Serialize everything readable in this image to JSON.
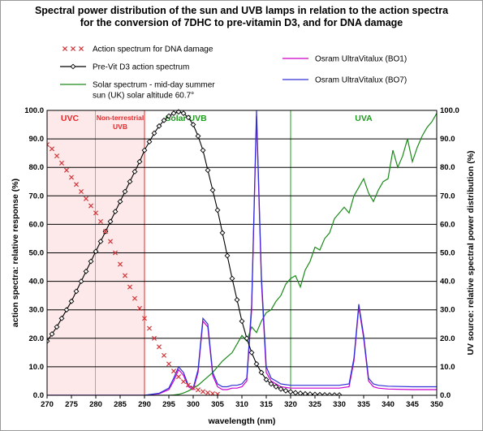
{
  "chart_data": {
    "type": "line",
    "title_lines": [
      "Spectral power distribution of the sun and UVB lamps in relation to the action spectra",
      "for the conversion of 7DHC to pre-vitamin D3, and for DNA damage"
    ],
    "xlabel": "wavelength (nm)",
    "ylabel_left": "action spectra: relative response (%)",
    "ylabel_right": "UV source: relative spectral power distribution (%)",
    "xlim": [
      270,
      350
    ],
    "ylim": [
      0,
      100
    ],
    "x_ticks": [
      "270",
      "275",
      "280",
      "285",
      "290",
      "295",
      "300",
      "305",
      "310",
      "315",
      "320",
      "325",
      "330",
      "335",
      "340",
      "345",
      "350"
    ],
    "y_ticks": [
      "0.0",
      "10.0",
      "20.0",
      "30.0",
      "40.0",
      "50.0",
      "60.0",
      "70.0",
      "80.0",
      "90.0",
      "100.0"
    ],
    "grid": "horizontal",
    "regions": [
      {
        "label": "UVC",
        "x0": 270,
        "x1": 280,
        "color": "#e8272a",
        "shaded": true
      },
      {
        "label_lines": [
          "Non-terrestrial",
          "UVB"
        ],
        "x0": 280,
        "x1": 290,
        "color": "#e8272a",
        "shaded": true
      },
      {
        "label": "Solar UVB",
        "x0": 290,
        "x1": 320,
        "color": "#1d9b1d",
        "shaded": false
      },
      {
        "label": "UVA",
        "x0": 320,
        "x1": 350,
        "color": "#1d9b1d",
        "shaded": false
      }
    ],
    "legend": [
      {
        "label": "Action spectrum for DNA damage",
        "color": "#d6363a",
        "marker": "x"
      },
      {
        "label": "Pre-Vit D3 action spectrum",
        "color": "#000000",
        "marker": "diamond"
      },
      {
        "label_lines": [
          "Solar spectrum - mid-day summer",
          "sun (UK)  solar altitude 60.7°"
        ],
        "color": "#1a8a1a",
        "marker": "line"
      },
      {
        "label": "Osram UltraVitalux (BO1)",
        "color": "#cc00cc",
        "marker": "line"
      },
      {
        "label": "Osram UltraVitalux (BO7)",
        "color": "#3030d8",
        "marker": "line"
      }
    ],
    "series": [
      {
        "name": "Action spectrum for DNA damage",
        "color": "#d6363a",
        "marker": "x",
        "x": [
          270,
          271,
          272,
          273,
          274,
          275,
          276,
          277,
          278,
          279,
          280,
          281,
          282,
          283,
          284,
          285,
          286,
          287,
          288,
          289,
          290,
          291,
          292,
          293,
          294,
          295,
          296,
          297,
          298,
          299,
          300,
          301,
          302,
          303,
          304,
          305
        ],
        "y": [
          88,
          86.5,
          84,
          81.5,
          79,
          76.5,
          74,
          71.5,
          69,
          66.5,
          64,
          61,
          57.5,
          54,
          50,
          46,
          42,
          38,
          34,
          30.5,
          27,
          23.5,
          20,
          17,
          14,
          11,
          8.5,
          6.5,
          4.8,
          3.6,
          2.6,
          1.9,
          1.3,
          0.9,
          0.6,
          0.4
        ]
      },
      {
        "name": "Pre-Vit D3 action spectrum",
        "color": "#000000",
        "marker": "diamond",
        "x": [
          270,
          271,
          272,
          273,
          274,
          275,
          276,
          277,
          278,
          279,
          280,
          281,
          282,
          283,
          284,
          285,
          286,
          287,
          288,
          289,
          290,
          291,
          292,
          293,
          294,
          295,
          296,
          297,
          298,
          299,
          300,
          301,
          302,
          303,
          304,
          305,
          306,
          307,
          308,
          309,
          310,
          311,
          312,
          313,
          314,
          315,
          316,
          317,
          318,
          319,
          320,
          321,
          322,
          323,
          324,
          325,
          326,
          327,
          328,
          329,
          330
        ],
        "y": [
          19,
          21.5,
          24,
          27,
          30,
          33,
          36.5,
          40,
          43.5,
          47,
          50.5,
          54,
          57.5,
          61,
          64.5,
          68,
          71.5,
          75,
          78.5,
          82,
          86,
          89,
          92,
          94.5,
          96.5,
          98,
          99,
          99.5,
          99,
          97.5,
          95,
          91,
          86,
          79,
          72,
          65,
          57,
          49,
          41,
          33.5,
          26,
          20,
          15,
          11,
          8,
          5.5,
          4,
          3,
          2.2,
          1.6,
          1.2,
          0.9,
          0.7,
          0.5,
          0.4,
          0.3,
          0.2,
          0.15,
          0.1,
          0.1,
          0.1
        ]
      },
      {
        "name": "Solar spectrum - mid-day summer sun (UK) solar altitude 60.7°",
        "color": "#1a8a1a",
        "marker": "none",
        "x": [
          290,
          292,
          294,
          295,
          296,
          297,
          298,
          299,
          300,
          301,
          302,
          303,
          304,
          305,
          306,
          307,
          308,
          309,
          310,
          311,
          312,
          313,
          314,
          315,
          316,
          317,
          318,
          319,
          320,
          321,
          322,
          323,
          324,
          325,
          326,
          327,
          328,
          329,
          330,
          331,
          332,
          333,
          334,
          335,
          336,
          337,
          338,
          339,
          340,
          341,
          342,
          343,
          344,
          345,
          346,
          347,
          348,
          349,
          350
        ],
        "y": [
          0,
          0,
          0,
          0,
          0.1,
          0.3,
          0.8,
          1.5,
          2.5,
          3.5,
          5,
          6.5,
          8,
          10,
          12,
          13.5,
          15,
          18,
          21,
          19,
          24,
          22,
          26,
          29,
          30,
          33,
          35,
          39,
          41,
          42,
          38,
          44,
          47,
          52,
          51,
          55,
          57,
          62,
          64,
          66,
          64,
          70,
          73,
          76,
          71,
          68,
          72,
          75,
          76,
          86,
          80,
          84,
          90,
          82,
          87,
          91,
          94,
          96,
          99
        ]
      },
      {
        "name": "Osram UltraVitalux (BO1)",
        "color": "#cc00cc",
        "marker": "none",
        "x": [
          270,
          280,
          290,
          293,
          295,
          296,
          297,
          298,
          299,
          300,
          301,
          302,
          303,
          304,
          305,
          306,
          307,
          308,
          309,
          310,
          311,
          312,
          313,
          314,
          315,
          316,
          317,
          318,
          320,
          325,
          330,
          332,
          333,
          334,
          335,
          336,
          337,
          338,
          340,
          345,
          350
        ],
        "y": [
          0,
          0,
          0,
          0.5,
          2,
          5,
          9,
          7,
          3,
          2,
          8,
          26,
          24,
          7,
          3,
          2,
          2,
          2.5,
          2.5,
          3,
          5,
          30,
          98,
          40,
          8,
          5,
          4,
          3,
          2.5,
          2.5,
          2.5,
          3,
          12,
          31,
          20,
          5,
          3,
          2.5,
          2.2,
          2,
          2
        ]
      },
      {
        "name": "Osram UltraVitalux (BO7)",
        "color": "#3030d8",
        "marker": "none",
        "x": [
          270,
          280,
          290,
          293,
          295,
          296,
          297,
          298,
          299,
          300,
          301,
          302,
          303,
          304,
          305,
          306,
          307,
          308,
          309,
          310,
          311,
          312,
          313,
          314,
          315,
          316,
          317,
          318,
          320,
          325,
          330,
          332,
          333,
          334,
          335,
          336,
          337,
          338,
          340,
          345,
          350
        ],
        "y": [
          0,
          0,
          0,
          0.7,
          2.5,
          6,
          10,
          8,
          3.5,
          2.5,
          9,
          27,
          25,
          8,
          4,
          3,
          3,
          3.5,
          3.5,
          4,
          6,
          32,
          100,
          42,
          10,
          6,
          5,
          4,
          3.5,
          3.5,
          3.5,
          4,
          13,
          32,
          21,
          6,
          4,
          3.5,
          3.2,
          3,
          3
        ]
      }
    ]
  }
}
